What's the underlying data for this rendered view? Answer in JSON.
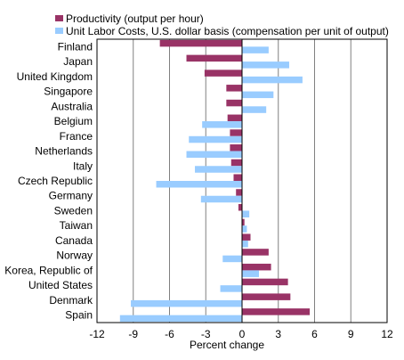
{
  "chart_data": {
    "type": "bar",
    "orientation": "horizontal",
    "title": "",
    "xlabel": "Percent change",
    "ylabel": "",
    "xlim": [
      -12,
      12
    ],
    "xticks": [
      -12,
      -9,
      -6,
      -3,
      0,
      3,
      6,
      9,
      12
    ],
    "grid": "vertical",
    "legend_position": "top-left",
    "categories": [
      "Finland",
      "Japan",
      "United Kingdom",
      "Singapore",
      "Australia",
      "Belgium",
      "France",
      "Netherlands",
      "Italy",
      "Czech Republic",
      "Germany",
      "Sweden",
      "Taiwan",
      "Canada",
      "Norway",
      "Korea, Republic of",
      "United States",
      "Denmark",
      "Spain"
    ],
    "series": [
      {
        "name": "Productivity (output per hour)",
        "color": "#993366",
        "values": [
          -6.8,
          -4.6,
          -3.1,
          -1.3,
          -1.3,
          -1.2,
          -1.0,
          -1.0,
          -0.9,
          -0.7,
          -0.5,
          -0.3,
          0.2,
          0.7,
          2.2,
          2.4,
          3.8,
          4.0,
          5.6
        ]
      },
      {
        "name": "Unit Labor Costs, U.S. dollar basis (compensation per unit of output)",
        "color": "#99ccff",
        "values": [
          2.2,
          3.9,
          5.0,
          2.6,
          2.0,
          -3.3,
          -4.4,
          -4.6,
          -3.9,
          -7.1,
          -3.4,
          0.6,
          0.4,
          0.5,
          -1.6,
          1.4,
          -1.8,
          -9.2,
          -10.1
        ]
      }
    ]
  }
}
